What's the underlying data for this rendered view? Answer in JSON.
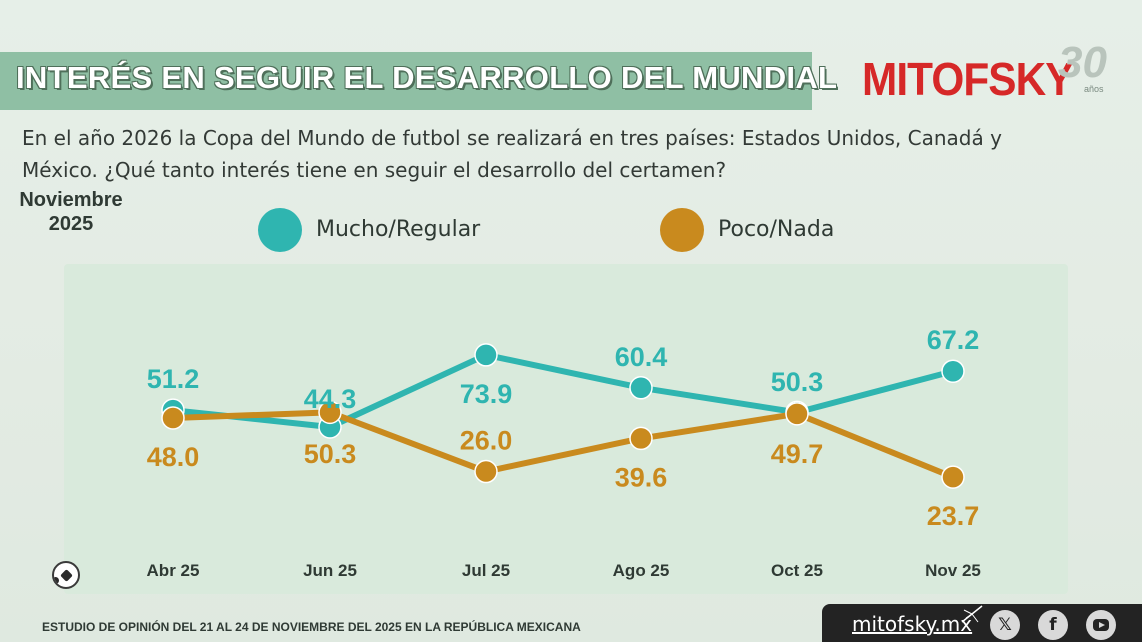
{
  "title": "INTERÉS EN SEGUIR EL DESARROLLO DEL MUNDIAL",
  "logo": {
    "name": "MITOFSKY",
    "anniversary": "30",
    "anniversary_unit": "años"
  },
  "question": "En el año 2026 la Copa del Mundo de futbol se realizará en tres países:  Estados Unidos, Canadá y México. ¿Qué tanto interés tiene en seguir el desarrollo del certamen?",
  "period": {
    "line1": "Noviembre",
    "line2": "2025"
  },
  "chart_data": {
    "type": "line",
    "title": "",
    "xlabel": "",
    "ylabel": "",
    "categories": [
      "Abr 25",
      "Jun 25",
      "Jul 25",
      "Ago 25",
      "Oct 25",
      "Nov 25"
    ],
    "series": [
      {
        "name": "Mucho/Regular",
        "values": [
          51.2,
          44.3,
          73.9,
          60.4,
          50.3,
          67.2
        ],
        "color": "#2fb5b0"
      },
      {
        "name": "Poco/Nada",
        "values": [
          48.0,
          50.3,
          26.0,
          39.6,
          49.7,
          23.7
        ],
        "color": "#c98a1e"
      }
    ],
    "data_labels": true,
    "grid": false,
    "legend": "top"
  },
  "footer": {
    "study": "ESTUDIO DE OPINIÓN DEL 21 AL 24 DE NOVIEMBRE DEL 2025 EN LA REPÚBLICA MEXICANA",
    "site": "mitofsky.mx",
    "social": [
      {
        "name": "x-icon",
        "glyph": "𝕏"
      },
      {
        "name": "facebook-icon",
        "glyph": "f"
      },
      {
        "name": "youtube-icon",
        "glyph": ""
      }
    ]
  },
  "colors": {
    "teal": "#2fb5b0",
    "gold": "#c98a1e",
    "banner": "#8fbfa4",
    "brand_red": "#d62828"
  }
}
